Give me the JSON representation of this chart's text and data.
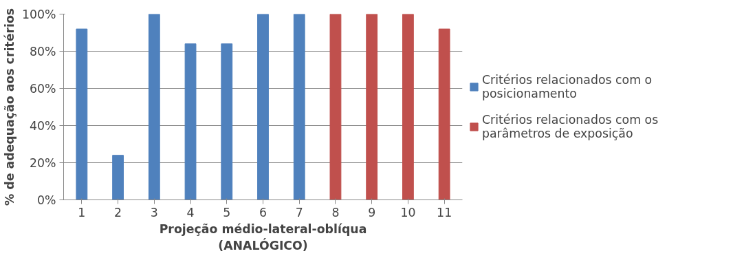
{
  "chart_data": {
    "type": "bar",
    "xlabel": "Projeção médio-lateral-oblíqua (ANALÓGICO)",
    "ylabel": "% de adequação aos critérios",
    "categories": [
      "1",
      "2",
      "3",
      "4",
      "5",
      "6",
      "7",
      "8",
      "9",
      "10",
      "11"
    ],
    "series": [
      {
        "name": "Critérios relacionados com o posicionamento",
        "color": "#4f81bd",
        "values": [
          92,
          24,
          100,
          84,
          84,
          100,
          100,
          null,
          null,
          null,
          null
        ]
      },
      {
        "name": "Critérios relacionados com os parâmetros de exposição",
        "color": "#c0504d",
        "values": [
          null,
          null,
          null,
          null,
          null,
          null,
          null,
          100,
          100,
          100,
          92
        ]
      }
    ],
    "ylim": [
      0,
      100
    ],
    "yticks": [
      {
        "value": 0,
        "label": "0%"
      },
      {
        "value": 20,
        "label": "20%"
      },
      {
        "value": 40,
        "label": "40%"
      },
      {
        "value": 60,
        "label": "60%"
      },
      {
        "value": 80,
        "label": "80%"
      },
      {
        "value": 100,
        "label": "100%"
      }
    ],
    "grid": "y",
    "legend": "right"
  }
}
